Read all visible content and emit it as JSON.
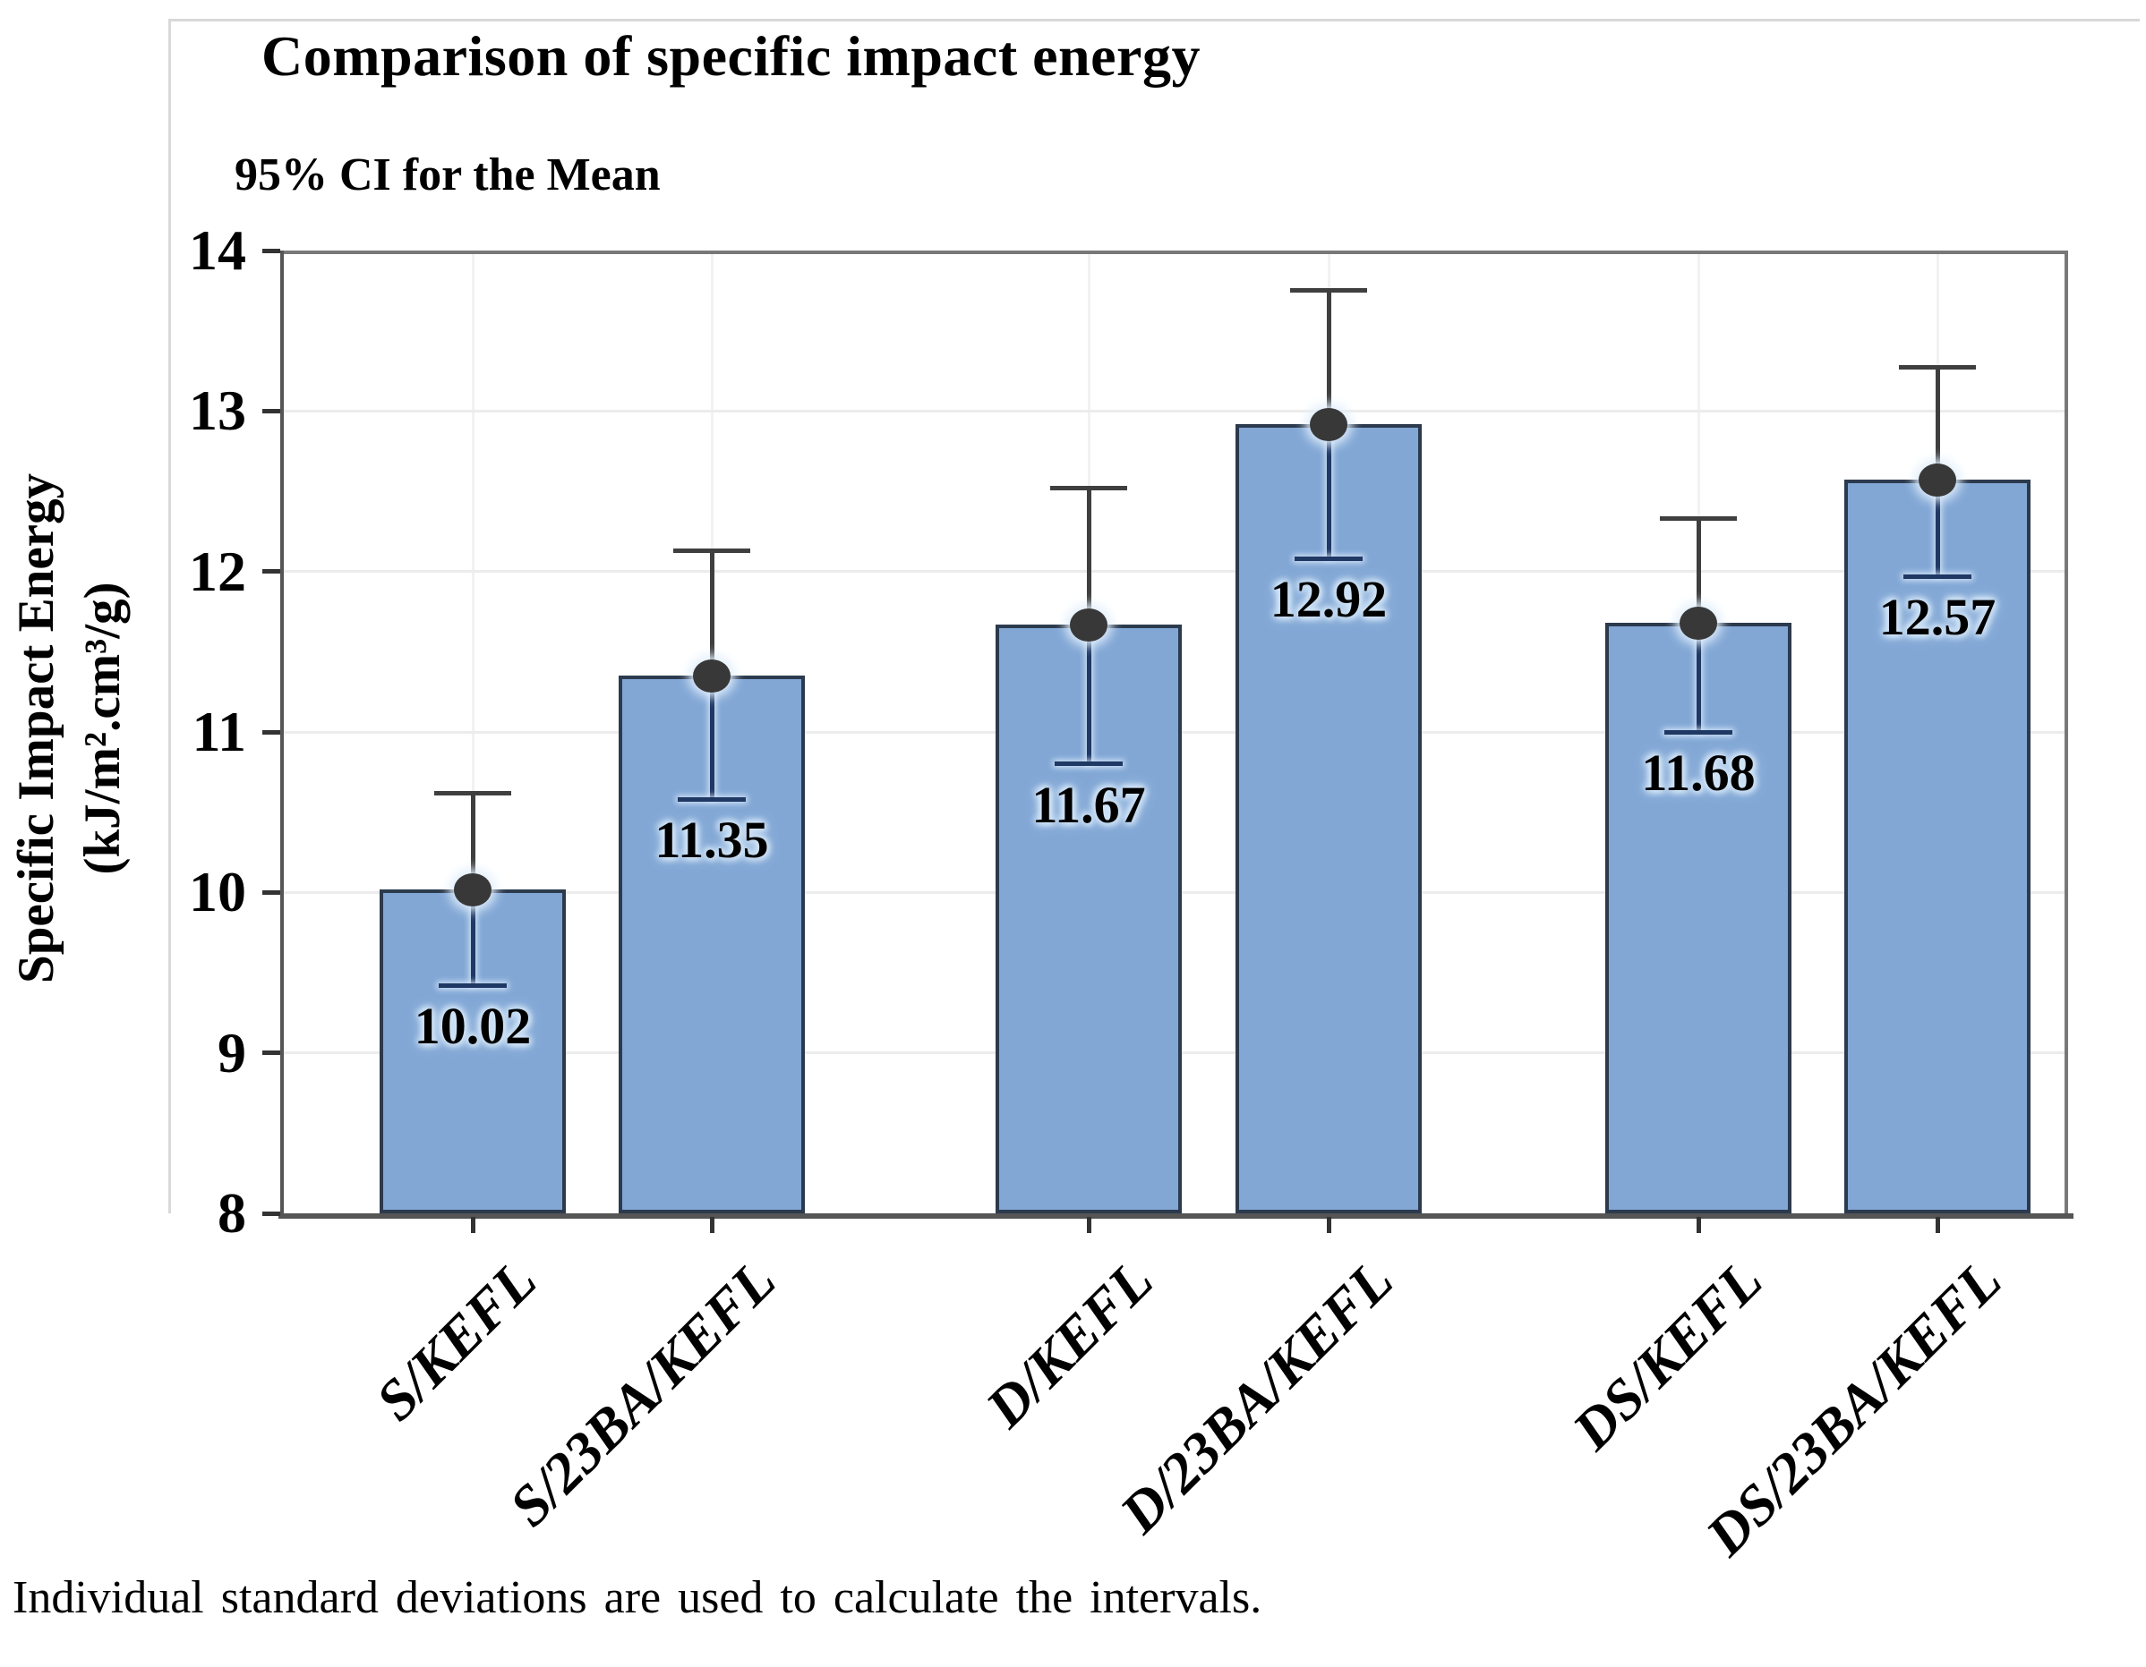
{
  "chart_data": {
    "type": "bar",
    "title": "Comparison of specific impact energy",
    "subtitle": "95% CI for the Mean",
    "ylabel_line1": "Specific Impact Energy",
    "ylabel_line2": "(kJ/m².cm³/g)",
    "footnote": "Individual standard deviations are used to calculate the intervals.",
    "categories": [
      "S/KEFL",
      "S/23BA/KEFL",
      "D/KEFL",
      "D/23BA/KEFL",
      "DS/KEFL",
      "DS/23BA/KEFL"
    ],
    "values": [
      10.02,
      11.35,
      11.67,
      12.92,
      11.68,
      12.57
    ],
    "data_labels": [
      "10.02",
      "11.35",
      "11.67",
      "12.92",
      "11.68",
      "12.57"
    ],
    "ci_upper": [
      10.62,
      12.13,
      12.52,
      13.75,
      12.33,
      13.27
    ],
    "ci_lower": [
      9.42,
      10.58,
      10.8,
      12.08,
      11.0,
      11.97
    ],
    "ylim": [
      8,
      14
    ],
    "yticks": [
      8,
      9,
      10,
      11,
      12,
      13,
      14
    ],
    "legend": "none",
    "grid": {
      "horizontal": true,
      "vertical_at_categories": true
    },
    "error_bar_style": "95% confidence interval whiskers with mean marker at bar top",
    "colors": {
      "bar_fill": "#82a7d5",
      "bar_border": "#2c3a4d",
      "upper_whisker": "#3f3f3f",
      "lower_whisker": "#1f3864",
      "marker": "#383838",
      "marker_halo": "#e2effc",
      "grid_horizontal": "#ececec",
      "grid_vertical": "#f2f2f2",
      "axis_line": "#555555",
      "plot_border": "#787878",
      "tick": "#333333",
      "text": "#000000",
      "label_halo": "#d2e5f7",
      "figure_border": "#d8d8d8"
    }
  }
}
